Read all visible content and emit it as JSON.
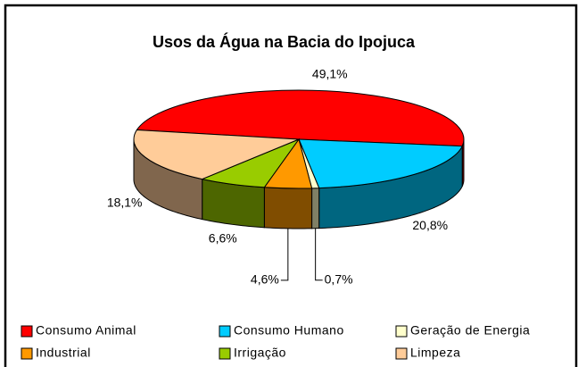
{
  "chart_data": {
    "type": "pie3d",
    "title": "Usos da Água na Bacia do Ipojuca",
    "categories": [
      "Consumo Animal",
      "Consumo Humano",
      "Geração de Energia",
      "Industrial",
      "Irrigação",
      "Limpeza"
    ],
    "values": [
      49.1,
      20.8,
      0.7,
      4.6,
      6.6,
      18.1
    ],
    "value_labels": [
      "49,1%",
      "20,8%",
      "0,7%",
      "4,6%",
      "6,6%",
      "18,1%"
    ],
    "colors": [
      "#ff0000",
      "#00ccff",
      "#ffffcc",
      "#ff9900",
      "#99cc00",
      "#ffcc99"
    ],
    "legend": "bottom"
  }
}
